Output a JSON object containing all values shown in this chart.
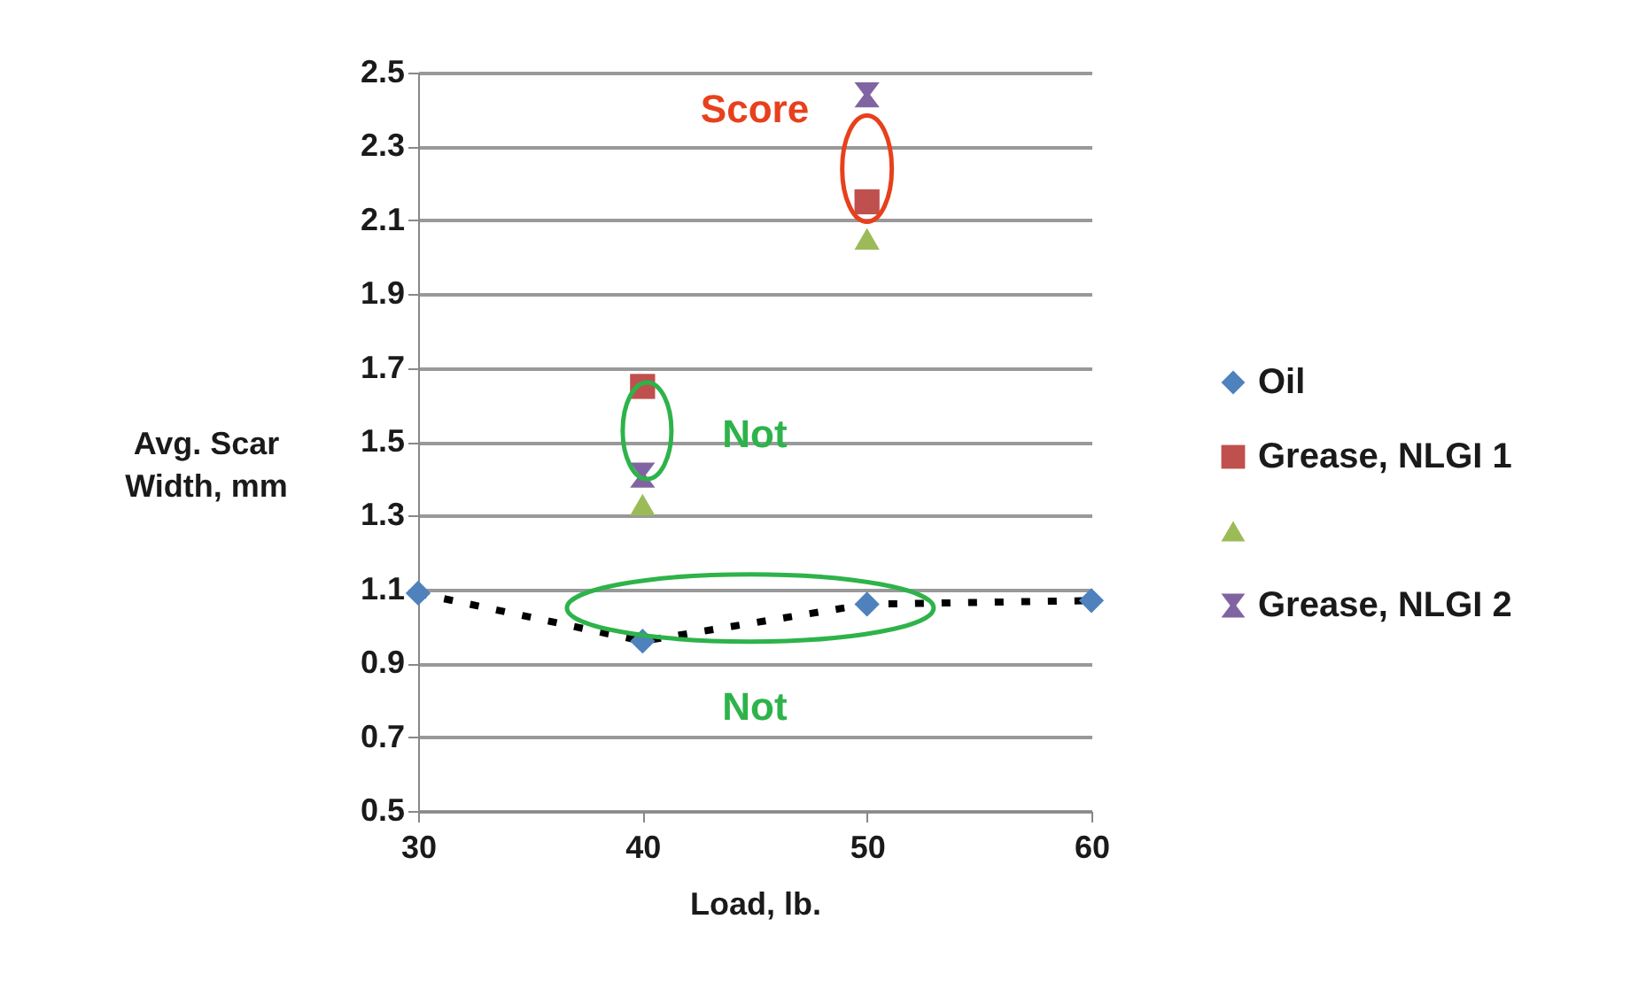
{
  "chart_data": {
    "type": "scatter",
    "xlabel": "Load, lb.",
    "ylabel": "Avg. Scar Width, mm",
    "xlim": [
      30,
      60
    ],
    "xticks": [
      30,
      40,
      50,
      60
    ],
    "ylim": [
      0.5,
      2.5
    ],
    "yticks": [
      0.5,
      0.7,
      0.9,
      1.1,
      1.3,
      1.5,
      1.7,
      1.9,
      2.1,
      2.3,
      2.5
    ],
    "grid": "y",
    "legend": "right",
    "series": [
      {
        "name": "Oil",
        "type": "line",
        "line_style": "dotted",
        "marker": "diamond",
        "color": "#4f81bd",
        "x": [
          30,
          40,
          50,
          60
        ],
        "values": [
          1.09,
          0.96,
          1.06,
          1.07
        ]
      },
      {
        "name": "Grease, NLGI 1",
        "type": "scatter",
        "marker": "square",
        "color": "#c0504d",
        "x": [
          40,
          50
        ],
        "values": [
          1.65,
          2.15
        ]
      },
      {
        "type": "scatter",
        "marker": "triangle",
        "color": "#9bbb59",
        "x": [
          40,
          50
        ],
        "values": [
          1.33,
          2.05
        ]
      },
      {
        "name": "Grease, NLGI 2",
        "type": "scatter",
        "marker": "cross",
        "color": "#8064a2",
        "x": [
          40,
          50
        ],
        "values": [
          1.41,
          2.44
        ]
      }
    ],
    "annotations": [
      "Score",
      "Not",
      "Not"
    ]
  }
}
